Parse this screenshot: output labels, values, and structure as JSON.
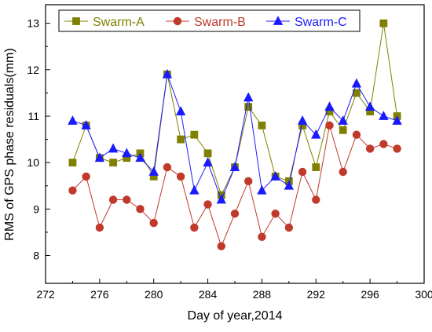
{
  "chart_data": {
    "type": "line",
    "xlabel": "Day of year,2014",
    "ylabel": "RMS of GPS phase residuals(mm)",
    "xlim": [
      272,
      300
    ],
    "ylim": [
      7.4,
      13.4
    ],
    "xticks": [
      272,
      276,
      280,
      284,
      288,
      292,
      296,
      300
    ],
    "yticks": [
      8,
      9,
      10,
      11,
      12,
      13
    ],
    "x": [
      274,
      275,
      276,
      277,
      278,
      279,
      280,
      281,
      282,
      283,
      284,
      285,
      286,
      287,
      288,
      289,
      290,
      291,
      292,
      293,
      294,
      295,
      296,
      297,
      298
    ],
    "legend_position": "top-left",
    "series": [
      {
        "name": "Swarm-A",
        "color": "#808000",
        "marker": "square",
        "values": [
          10.0,
          10.8,
          10.1,
          10.0,
          10.1,
          10.2,
          9.7,
          11.9,
          10.5,
          10.6,
          10.2,
          9.3,
          9.9,
          11.2,
          10.8,
          9.7,
          9.6,
          10.8,
          9.9,
          11.1,
          10.7,
          11.5,
          11.1,
          13.0,
          11.0
        ]
      },
      {
        "name": "Swarm-B",
        "color": "#c0392b",
        "marker": "circle",
        "values": [
          9.4,
          9.7,
          8.6,
          9.2,
          9.2,
          9.0,
          8.7,
          9.9,
          9.7,
          8.6,
          9.1,
          8.2,
          8.9,
          9.6,
          8.4,
          8.9,
          8.6,
          9.8,
          9.2,
          10.8,
          9.8,
          10.6,
          10.3,
          10.4,
          10.3
        ]
      },
      {
        "name": "Swarm-C",
        "color": "#1a1aff",
        "marker": "triangle",
        "values": [
          10.9,
          10.8,
          10.1,
          10.3,
          10.2,
          10.1,
          9.8,
          11.9,
          11.1,
          9.4,
          10.0,
          9.2,
          9.9,
          11.4,
          9.4,
          9.7,
          9.5,
          10.9,
          10.6,
          11.2,
          10.9,
          11.7,
          11.2,
          11.0,
          10.9
        ]
      }
    ]
  }
}
